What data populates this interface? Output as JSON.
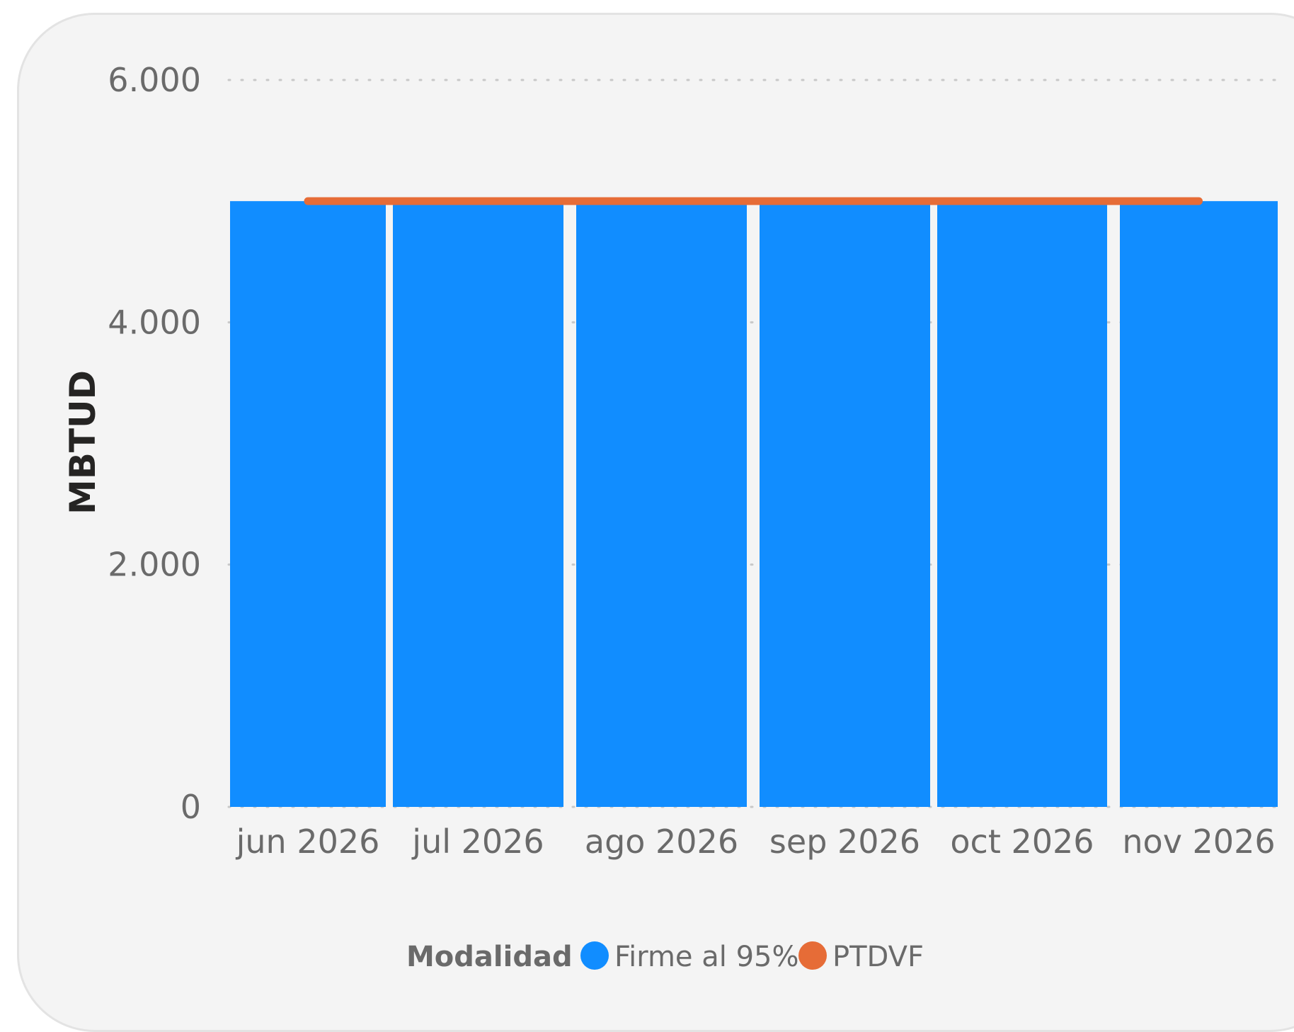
{
  "chart_data": {
    "type": "bar",
    "categories": [
      "jun 2026",
      "jul 2026",
      "ago 2026",
      "sep 2026",
      "oct 2026",
      "nov 2026"
    ],
    "series": [
      {
        "name": "Firme al 95%",
        "kind": "bar",
        "color": "#118dff",
        "values": [
          5000,
          5000,
          5000,
          5000,
          5000,
          5000
        ]
      },
      {
        "name": "PTDVF",
        "kind": "line",
        "color": "#e66c37",
        "values": [
          5000,
          5000,
          5000,
          5000,
          5000,
          5000
        ]
      }
    ],
    "ylabel": "MBTUD",
    "xlabel": "",
    "ylim": [
      0,
      6000
    ],
    "yticks": [
      0,
      2000,
      4000,
      6000
    ],
    "ytick_labels": [
      "0",
      "2.000",
      "4.000",
      "6.000"
    ],
    "grid": true,
    "legend": {
      "title": "Modalidad",
      "placement": "bottom-center"
    }
  }
}
